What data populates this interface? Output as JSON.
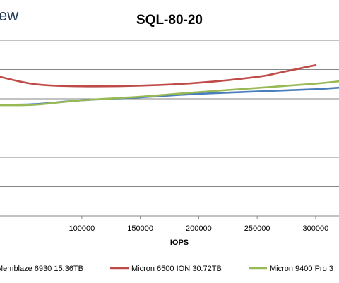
{
  "brand_fragment": "ew",
  "chart_data": {
    "type": "line",
    "title": "SQL-80-20",
    "xlabel": "IOPS",
    "ylabel": "",
    "xlim": [
      30000,
      320000
    ],
    "ylim": [
      0,
      6
    ],
    "x_ticks": [
      100000,
      150000,
      200000,
      250000,
      300000
    ],
    "x_tick_labels": [
      "100000",
      "150000",
      "200000",
      "250000",
      "300000"
    ],
    "gridlines": "horizontal",
    "legend_position": "bottom",
    "series": [
      {
        "name": "Memblaze 6930 15.36TB",
        "color": "#4a7ebb",
        "x": [
          30000,
          60000,
          100000,
          150000,
          200000,
          250000,
          300000,
          320000
        ],
        "y": [
          3.8,
          3.82,
          3.95,
          4.05,
          4.17,
          4.25,
          4.33,
          4.38
        ]
      },
      {
        "name": "Micron 6500 ION 30.72TB",
        "color": "#be4b48",
        "x": [
          30000,
          60000,
          100000,
          150000,
          200000,
          250000,
          270000,
          300000
        ],
        "y": [
          4.75,
          4.5,
          4.43,
          4.45,
          4.55,
          4.75,
          4.9,
          5.15
        ]
      },
      {
        "name": "Micron 9400 Pro 3",
        "color": "#98b954",
        "x": [
          30000,
          60000,
          100000,
          150000,
          200000,
          250000,
          300000,
          320000
        ],
        "y": [
          3.78,
          3.8,
          3.95,
          4.07,
          4.23,
          4.37,
          4.52,
          4.6
        ]
      }
    ]
  }
}
